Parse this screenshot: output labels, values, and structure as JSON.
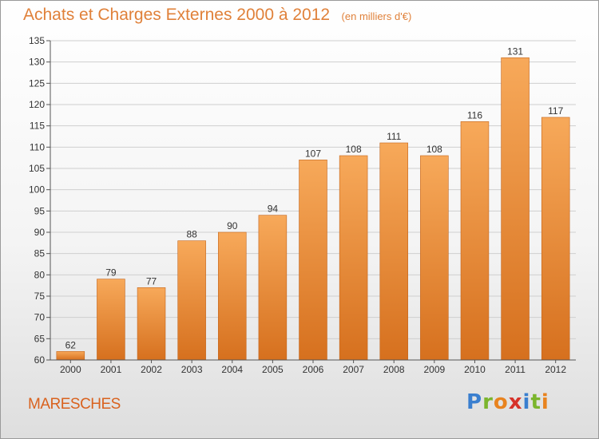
{
  "title": "Achats et Charges Externes 2000 à 2012",
  "subtitle": "(en milliers d'€)",
  "commune": "MARESCHES",
  "logo": {
    "text": "Proxiti",
    "letters": [
      "P",
      "r",
      "o",
      "x",
      "i",
      "t",
      "i"
    ],
    "colors": [
      "#3a7fcf",
      "#7bb52d",
      "#e8831f",
      "#d6322a",
      "#3a7fcf",
      "#7bb52d",
      "#e8831f"
    ]
  },
  "colors": {
    "title": "#e0813a",
    "bar_top": "#f7a95a",
    "bar_bottom": "#d6701e",
    "bar_stroke": "#c4651c",
    "axis_text": "#333333",
    "grid": "#cfcfcf"
  },
  "chart_data": {
    "type": "bar",
    "categories": [
      "2000",
      "2001",
      "2002",
      "2003",
      "2004",
      "2005",
      "2006",
      "2007",
      "2008",
      "2009",
      "2010",
      "2011",
      "2012"
    ],
    "values": [
      62,
      79,
      77,
      88,
      90,
      94,
      107,
      108,
      111,
      108,
      116,
      131,
      117
    ],
    "data_labels": [
      "62",
      "79",
      "77",
      "88",
      "90",
      "94",
      "107",
      "108",
      "111",
      "108",
      "116",
      "131",
      "117"
    ],
    "title": "Achats et Charges Externes 2000 à 2012",
    "subtitle": "(en milliers d'€)",
    "xlabel": "",
    "ylabel": "",
    "ylim": [
      60,
      135
    ],
    "yticks": [
      60,
      65,
      70,
      75,
      80,
      85,
      90,
      95,
      100,
      105,
      110,
      115,
      120,
      125,
      130,
      135
    ],
    "grid": true,
    "legend": "none"
  }
}
